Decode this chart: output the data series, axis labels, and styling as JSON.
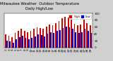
{
  "title": "Milwaukee Weather  Outdoor Temperature",
  "subtitle": "Daily High/Low",
  "title_fontsize": 3.8,
  "bar_width": 0.4,
  "background_color": "#d0d0d0",
  "plot_bg_color": "#ffffff",
  "high_color": "#cc0000",
  "low_color": "#0000cc",
  "legend_high": "High",
  "legend_low": "Low",
  "x_labels": [
    "2",
    "3",
    "4",
    "5",
    "6",
    "7",
    "8",
    "9",
    "10",
    "11",
    "12",
    "13",
    "14",
    "15",
    "16",
    "17",
    "18",
    "19",
    "20",
    "21",
    "22",
    "23",
    "24",
    "25",
    "26",
    "27",
    "28",
    "29"
  ],
  "highs": [
    38,
    35,
    30,
    42,
    50,
    55,
    48,
    44,
    50,
    55,
    60,
    58,
    55,
    62,
    68,
    65,
    72,
    78,
    85,
    90,
    88,
    82,
    70,
    65,
    68,
    82,
    72,
    65
  ],
  "lows": [
    20,
    18,
    15,
    25,
    30,
    35,
    28,
    25,
    28,
    32,
    38,
    36,
    33,
    40,
    45,
    42,
    48,
    52,
    58,
    62,
    60,
    55,
    45,
    42,
    45,
    55,
    50,
    42
  ],
  "ylim_min": 0,
  "ylim_max": 100,
  "yticks": [
    0,
    20,
    40,
    60,
    80,
    100
  ],
  "tick_fontsize": 3.0,
  "dpi": 100,
  "figw": 1.6,
  "figh": 0.87
}
